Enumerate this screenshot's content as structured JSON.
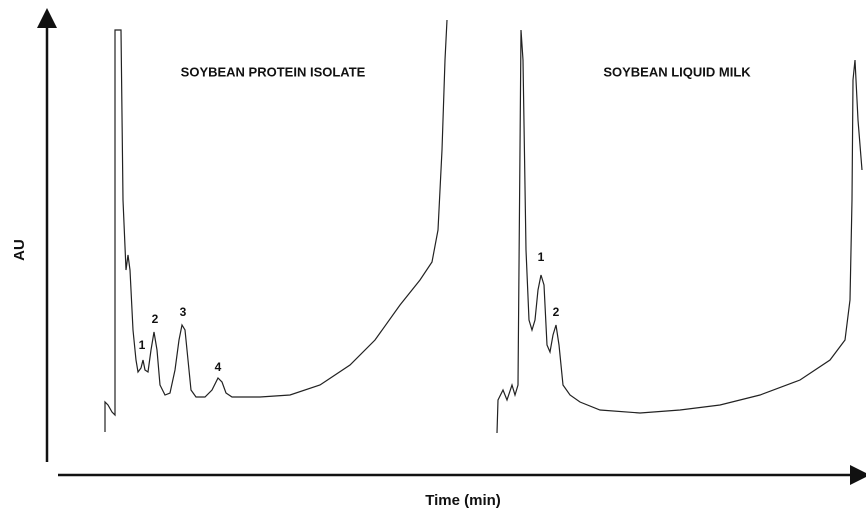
{
  "chart_data": {
    "type": "line",
    "ylabel": "AU",
    "xlabel": "Time (min)",
    "panels": [
      {
        "title": "SOYBEAN PROTEIN ISOLATE",
        "peak_labels": [
          "1",
          "2",
          "3",
          "4"
        ]
      },
      {
        "title": "SOYBEAN LIQUID MILK",
        "peak_labels": [
          "1",
          "2"
        ]
      }
    ]
  }
}
